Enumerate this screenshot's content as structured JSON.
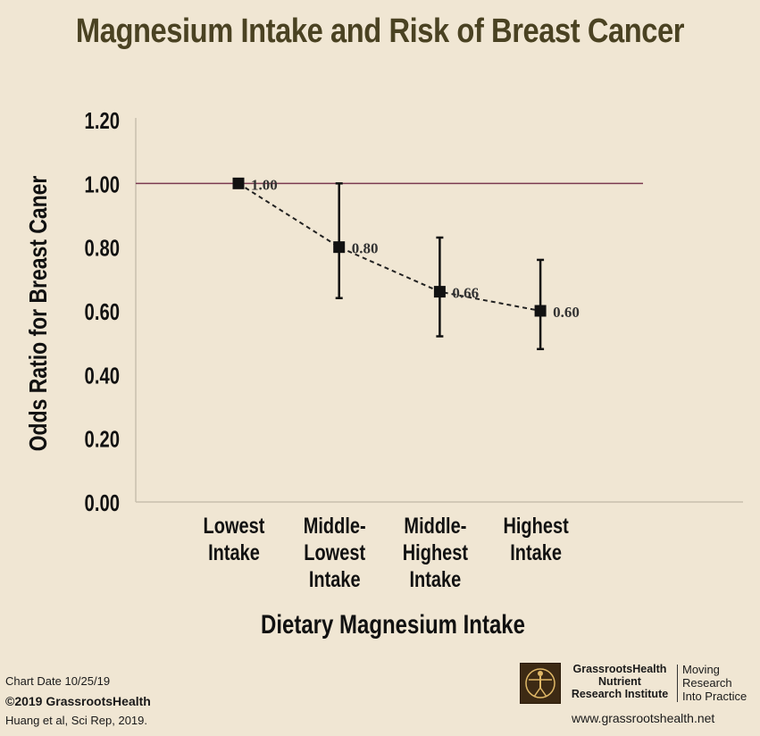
{
  "title": "Magnesium Intake and Risk of Breast Cancer",
  "chart_data": {
    "type": "line",
    "title": "Magnesium Intake and Risk of Breast Cancer",
    "xlabel": "Dietary Magnesium Intake",
    "ylabel": "Odds Ratio for Breast Caner",
    "ylim": [
      0,
      1.2
    ],
    "yticks": [
      "0.00",
      "0.20",
      "0.40",
      "0.60",
      "0.80",
      "1.00",
      "1.20"
    ],
    "reference_line": 1.0,
    "categories": [
      [
        "Lowest",
        "Intake"
      ],
      [
        "Middle-",
        "Lowest",
        "Intake"
      ],
      [
        "Middle-",
        "Highest",
        "Intake"
      ],
      [
        "Highest",
        "Intake"
      ]
    ],
    "series": [
      {
        "name": "Odds Ratio",
        "values": [
          1.0,
          0.8,
          0.66,
          0.6
        ],
        "labels": [
          "1.00",
          "0.80",
          "0.66",
          "0.60"
        ],
        "ci_low": [
          1.0,
          0.64,
          0.52,
          0.48
        ],
        "ci_high": [
          1.0,
          1.0,
          0.83,
          0.76
        ]
      }
    ]
  },
  "footer": {
    "chart_date": "Chart Date 10/25/19",
    "copyright": "©2019 GrassrootsHealth",
    "citation": "Huang et al, Sci Rep, 2019.",
    "org_line1": "GrassrootsHealth",
    "org_line2": "Nutrient",
    "org_line3": "Research Institute",
    "tagline1": "Moving",
    "tagline2": "Research",
    "tagline3": "Into Practice",
    "website": "www.grassrootshealth.net"
  },
  "colors": {
    "background": "#f0e6d3",
    "title": "#4a4222",
    "reference_line": "#7a3a50",
    "series": "#111111"
  }
}
